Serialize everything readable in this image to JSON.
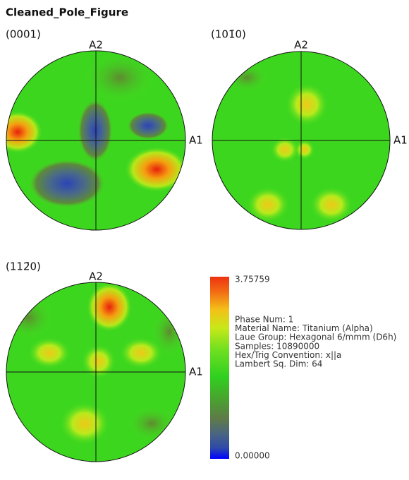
{
  "title": "Cleaned_Pole_Figure",
  "panels": [
    {
      "label": "(0001)",
      "axis_top": "A2",
      "axis_right": "A1"
    },
    {
      "label": "(101̄0)",
      "axis_top": "A2",
      "axis_right": "A1"
    },
    {
      "label": "(112̄0)",
      "axis_top": "A2",
      "axis_right": "A1"
    }
  ],
  "colorbar": {
    "max": "3.75759",
    "min": "0.00000"
  },
  "info": [
    "Phase Num: 1",
    "Material Name: Titanium (Alpha)",
    "Laue Group: Hexagonal 6/mmm (D6h)",
    "Samples: 10890000",
    "Hex/Trig Convention: x||a",
    "Lambert Sq. Dim: 64"
  ]
}
